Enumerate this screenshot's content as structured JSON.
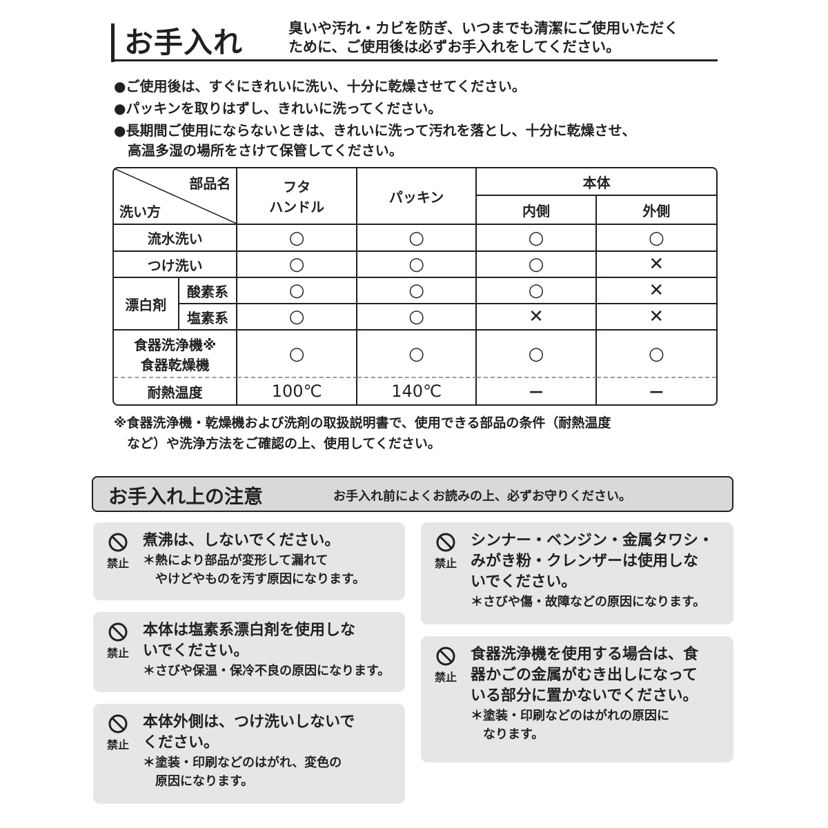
{
  "header": {
    "title": "お手入れ",
    "intro": [
      "臭いや汚れ・カビを防ぎ、いつまでも清潔にご使用いただく",
      "ために、ご使用後は必ずお手入れをしてください。"
    ]
  },
  "bullets": [
    "●ご使用後は、すぐにきれいに洗い、十分に乾燥させてください。",
    "●パッキンを取りはずし、きれいに洗ってください。",
    "●長期間ご使用にならないときは、きれいに洗って汚れを落とし、十分に乾燥させ、",
    "　高温多湿の場所をさけて保管してください。"
  ],
  "table": {
    "corner_top": "部品名",
    "corner_bottom": "洗い方",
    "col_futa": [
      "フタ",
      "ハンドル"
    ],
    "col_packing": "パッキン",
    "col_body": "本体",
    "col_inner": "内側",
    "col_outer": "外側",
    "rows": [
      {
        "label": "流水洗い",
        "v": [
          "○",
          "○",
          "○",
          "○"
        ]
      },
      {
        "label": "つけ洗い",
        "v": [
          "○",
          "○",
          "○",
          "✕"
        ]
      },
      {
        "group": "漂白剤",
        "label": "酸素系",
        "v": [
          "○",
          "○",
          "○",
          "✕"
        ]
      },
      {
        "label": "塩素系",
        "v": [
          "○",
          "○",
          "✕",
          "✕"
        ]
      },
      {
        "label": [
          "食器洗浄機※",
          "食器乾燥機"
        ],
        "v": [
          "○",
          "○",
          "○",
          "○"
        ]
      },
      {
        "label": "耐熱温度",
        "v": [
          "100℃",
          "140℃",
          "—",
          "—"
        ]
      }
    ]
  },
  "note": [
    "※食器洗浄機・乾燥機および洗剤の取扱説明書で、使用できる部品の条件（耐熱温度",
    "　など）や洗浄方法をご確認の上、使用してください。"
  ],
  "caution": {
    "title": "お手入れ上の注意",
    "subtitle": "お手入れ前によくお読みの上、必ずお守りください。",
    "prohibit_label": "禁止",
    "items": [
      {
        "main": [
          "煮沸は、しないでください。"
        ],
        "sub": [
          "＊熱により部品が変形して漏れて",
          "　やけどやものを汚す原因になります。"
        ]
      },
      {
        "main": [
          "本体は塩素系漂白剤を使用しな",
          "いでください。"
        ],
        "sub": [
          "＊さびや保温・保冷不良の原因になります。"
        ]
      },
      {
        "main": [
          "本体外側は、つけ洗いしないで",
          "ください。"
        ],
        "sub": [
          "＊塗装・印刷などのはがれ、変色の",
          "　原因になります。"
        ]
      },
      {
        "main": [
          "シンナー・ベンジン・金属タワシ・",
          "みがき粉・クレンザーは使用しな",
          "いでください。"
        ],
        "sub": [
          "＊さびや傷・故障などの原因になります。"
        ]
      },
      {
        "main": [
          "食器洗浄機を使用する場合は、食",
          "器かごの金属がむき出しになって",
          "いる部分に置かないでください。"
        ],
        "sub": [
          "＊塗装・印刷などのはがれの原因に",
          "　なります。"
        ]
      }
    ]
  }
}
